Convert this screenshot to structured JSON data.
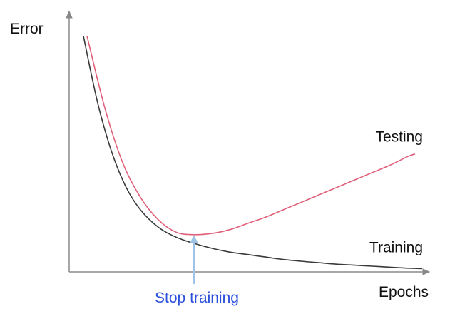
{
  "chart_data": {
    "type": "line",
    "title": "",
    "xlabel": "Epochs",
    "ylabel": "Error",
    "xlim": [
      0,
      100
    ],
    "ylim": [
      0,
      100
    ],
    "grid": false,
    "legend": "none",
    "series": [
      {
        "name": "Testing",
        "color": "#e0607a",
        "x": [
          5,
          10,
          15,
          20,
          25,
          30,
          35,
          40,
          45,
          50,
          55,
          60,
          65,
          70,
          75,
          80,
          85,
          90,
          95,
          97
        ],
        "y": [
          95,
          66,
          44,
          30,
          21,
          16,
          15,
          15.5,
          17,
          19.5,
          22,
          25,
          28,
          31,
          34,
          37,
          40,
          43,
          46.5,
          47.5
        ]
      },
      {
        "name": "Training",
        "color": "#3a3a3a",
        "x": [
          4,
          8,
          12,
          16,
          20,
          25,
          30,
          35,
          40,
          45,
          50,
          55,
          60,
          65,
          70,
          75,
          80,
          85,
          90,
          95,
          99
        ],
        "y": [
          95,
          68,
          48,
          34,
          25,
          18,
          14,
          11.5,
          9.5,
          8,
          7,
          6,
          5,
          4.3,
          3.7,
          3.1,
          2.7,
          2.3,
          1.9,
          1.5,
          1.3
        ]
      }
    ],
    "annotations": [
      {
        "text": "Stop training",
        "x": 35,
        "y": 15,
        "color": "#2a4fdc",
        "arrow_color": "#9dc3e6"
      }
    ]
  }
}
